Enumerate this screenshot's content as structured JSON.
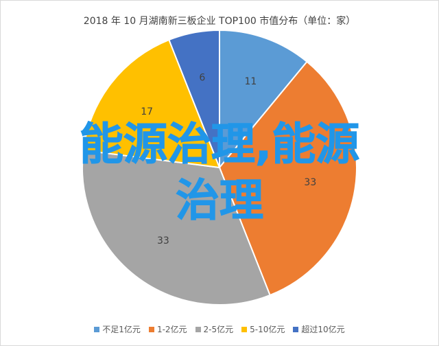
{
  "chart_data": {
    "type": "pie",
    "title": "2018 年 10 月湖南新三板企业 TOP100 市值分布（单位：家）",
    "categories": [
      "不足1亿元",
      "1-2亿元",
      "2-5亿元",
      "5-10亿元",
      "超过10亿元"
    ],
    "values": [
      11,
      33,
      33,
      17,
      6
    ],
    "colors": [
      "#5b9bd5",
      "#ed7d31",
      "#a5a5a5",
      "#ffc000",
      "#4472c4"
    ],
    "legend_position": "bottom"
  },
  "overlay_text": {
    "line1": "能源治理,能源",
    "line2": "治理"
  }
}
